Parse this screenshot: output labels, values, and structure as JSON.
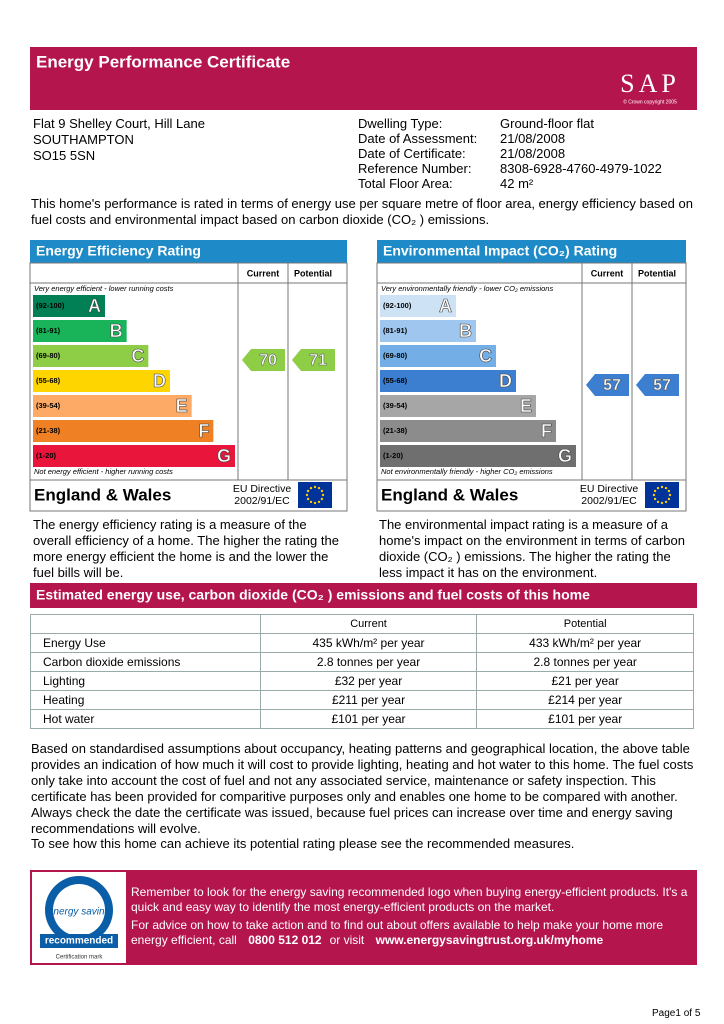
{
  "header": {
    "title": "Energy Performance Certificate",
    "logo": "SAP",
    "logo_note": "© Crown copyright 2005"
  },
  "address": [
    "Flat 9 Shelley Court, Hill Lane",
    "SOUTHAMPTON",
    "SO15 5SN"
  ],
  "details": [
    [
      "Dwelling Type:",
      "Ground-floor flat"
    ],
    [
      "Date of Assessment:",
      "21/08/2008"
    ],
    [
      "Date of Certificate:",
      "21/08/2008"
    ],
    [
      "Reference Number:",
      "8308-6928-4760-4979-1022"
    ],
    [
      "Total Floor Area:",
      "42 m²"
    ]
  ],
  "intro": "This home's performance is rated in terms of energy use per square metre of floor area, energy efficiency based on fuel costs and environmental impact based on carbon dioxide (CO₂ ) emissions.",
  "efficiency_rating": {
    "title": "Energy Efficiency Rating",
    "columns": [
      "Current",
      "Potential"
    ],
    "top_note": "Very energy efficient - lower running costs",
    "bands": [
      {
        "range": "(92-100)",
        "letter": "A"
      },
      {
        "range": "(81-91)",
        "letter": "B"
      },
      {
        "range": "(69-80)",
        "letter": "C"
      },
      {
        "range": "(55-68)",
        "letter": "D"
      },
      {
        "range": "(39-54)",
        "letter": "E"
      },
      {
        "range": "(21-38)",
        "letter": "F"
      },
      {
        "range": "(1-20)",
        "letter": "G"
      }
    ],
    "bottom_note": "Not energy efficient - higher running costs",
    "current": "70",
    "potential": "71",
    "region": "England & Wales",
    "directive": [
      "EU Directive",
      "2002/91/EC"
    ],
    "description": "The energy efficiency rating is a measure of the overall efficiency of a home. The higher the rating the more energy efficient the home is and the lower the fuel bills will be."
  },
  "environmental_rating": {
    "title": "Environmental Impact (CO₂) Rating",
    "columns": [
      "Current",
      "Potential"
    ],
    "top_note": "Very environmentally friendly - lower CO₂ emissions",
    "bands": [
      {
        "range": "(92-100)",
        "letter": "A"
      },
      {
        "range": "(81-91)",
        "letter": "B"
      },
      {
        "range": "(69-80)",
        "letter": "C"
      },
      {
        "range": "(55-68)",
        "letter": "D"
      },
      {
        "range": "(39-54)",
        "letter": "E"
      },
      {
        "range": "(21-38)",
        "letter": "F"
      },
      {
        "range": "(1-20)",
        "letter": "G"
      }
    ],
    "bottom_note": "Not environmentally friendly - higher CO₂ emissions",
    "current": "57",
    "potential": "57",
    "region": "England & Wales",
    "directive": [
      "EU Directive",
      "2002/91/EC"
    ],
    "description": "The environmental impact rating is a measure of a home's impact on the environment in terms of carbon dioxide (CO₂ ) emissions. The higher the rating the less impact it has on the environment."
  },
  "estimates": {
    "title": "Estimated energy use, carbon dioxide (CO₂ ) emissions and fuel costs of this home",
    "columns": [
      "Current",
      "Potential"
    ],
    "rows": [
      [
        "Energy Use",
        "435 kWh/m² per year",
        "433 kWh/m² per year"
      ],
      [
        "Carbon dioxide emissions",
        "2.8 tonnes per year",
        "2.8 tonnes per year"
      ],
      [
        "Lighting",
        "£32 per year",
        "£21 per year"
      ],
      [
        "Heating",
        "£211 per year",
        "£214 per year"
      ],
      [
        "Hot water",
        "£101 per year",
        "£101 per year"
      ]
    ]
  },
  "notes": [
    "Based on standardised assumptions about occupancy, heating patterns and geographical location, the above table provides an indication of how much it will cost to provide lighting, heating and hot water to this home. The fuel costs only take into account the cost of fuel and not any associated service, maintenance or safety inspection.  This certificate has been provided for comparitive purposes only and enables one home to be compared with another.  Always check the date the certificate was issued, because fuel prices can increase over time and energy saving recommendations will evolve.",
    "To see how this home can achieve its potential rating please see the recommended measures."
  ],
  "advice": {
    "logo_top": "energy saving",
    "logo_main": "recommended",
    "logo_note": "Certification mark",
    "reminder": "Remember to look for the energy saving recommended logo when buying energy-efficient products.  It's a quick and easy way to identify the most energy-efficient products on the market.",
    "contact": "For advice on how to take action and to find out about offers available to help make your home more energy efficient, call",
    "phone": "0800 512 012",
    "or_visit": "or visit",
    "url": "www.energysavingtrust.org.uk/myhome"
  },
  "footer": {
    "page": "Page1  of 5"
  }
}
